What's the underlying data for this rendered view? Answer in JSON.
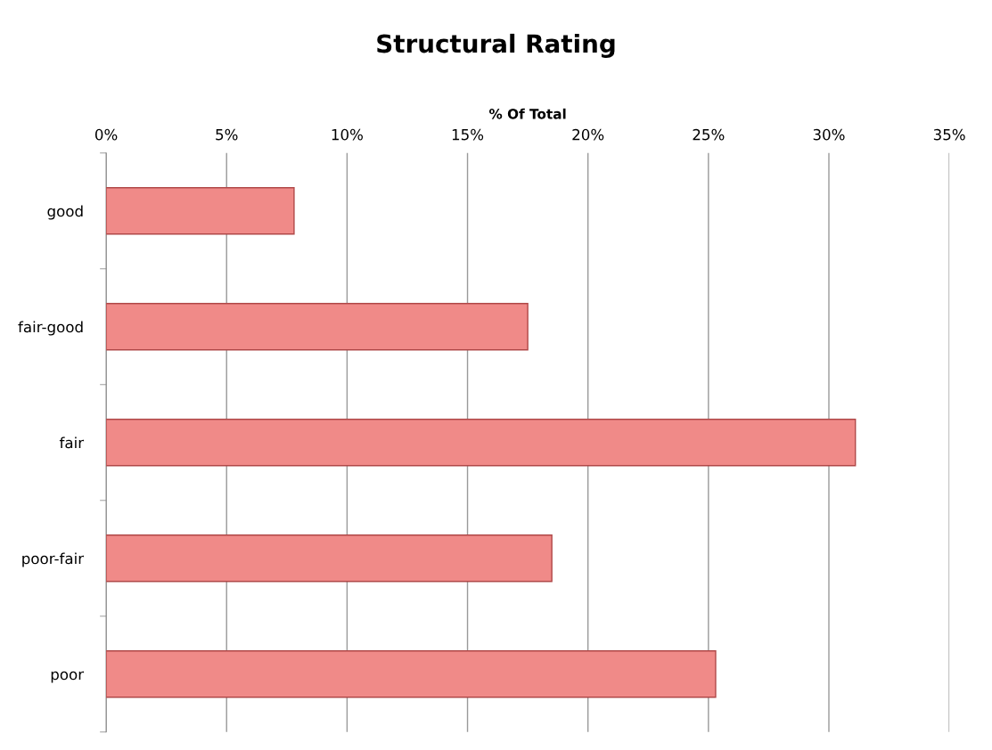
{
  "chart_data": {
    "type": "bar",
    "orientation": "horizontal",
    "title": "Structural Rating",
    "xlabel": "% Of Total",
    "categories": [
      "good",
      "fair-good",
      "fair",
      "poor-fair",
      "poor"
    ],
    "values": [
      7.8,
      17.5,
      31.1,
      18.5,
      25.3
    ],
    "color": "#f08a88",
    "xlim": [
      0,
      35
    ],
    "xticks": [
      {
        "value": 0,
        "label": "0%"
      },
      {
        "value": 5,
        "label": "5%"
      },
      {
        "value": 10,
        "label": "10%"
      },
      {
        "value": 15,
        "label": "15%"
      },
      {
        "value": 20,
        "label": "20%"
      },
      {
        "value": 25,
        "label": "25%"
      },
      {
        "value": 30,
        "label": "30%"
      },
      {
        "value": 35,
        "label": "35%"
      }
    ],
    "grid": "x",
    "legend": false
  }
}
